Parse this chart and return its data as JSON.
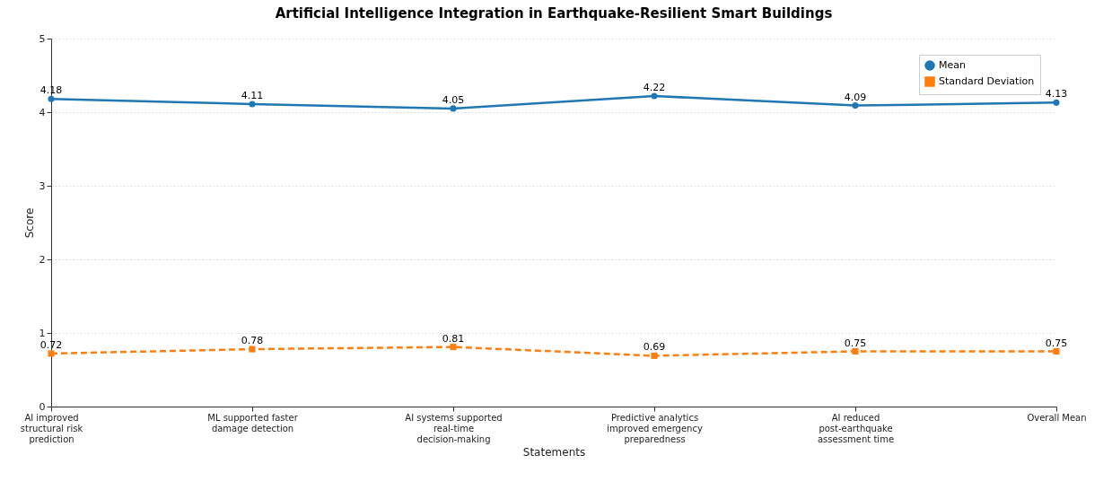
{
  "chart_data": {
    "type": "line",
    "title": "Artificial Intelligence Integration in Earthquake-Resilient Smart Buildings",
    "xlabel": "Statements",
    "ylabel": "Score",
    "categories": [
      "AI improved structural risk prediction",
      "ML supported faster damage detection",
      "AI systems supported real-time decision-making",
      "Predictive analytics improved emergency preparedness",
      "AI reduced post-earthquake assessment time",
      "Overall Mean"
    ],
    "series": [
      {
        "name": "Mean",
        "color": "#1f77b4",
        "marker": "circle",
        "line_style": "solid",
        "values": [
          4.18,
          4.11,
          4.05,
          4.22,
          4.09,
          4.13
        ]
      },
      {
        "name": "Standard Deviation",
        "color": "#ff7f0e",
        "marker": "square",
        "line_style": "dashed",
        "values": [
          0.72,
          0.78,
          0.81,
          0.69,
          0.75,
          0.75
        ]
      }
    ],
    "ylim": [
      0,
      5
    ],
    "yticks": [
      0,
      1,
      2,
      3,
      4,
      5
    ],
    "grid": "y",
    "legend": "top right",
    "data_labels": true
  }
}
